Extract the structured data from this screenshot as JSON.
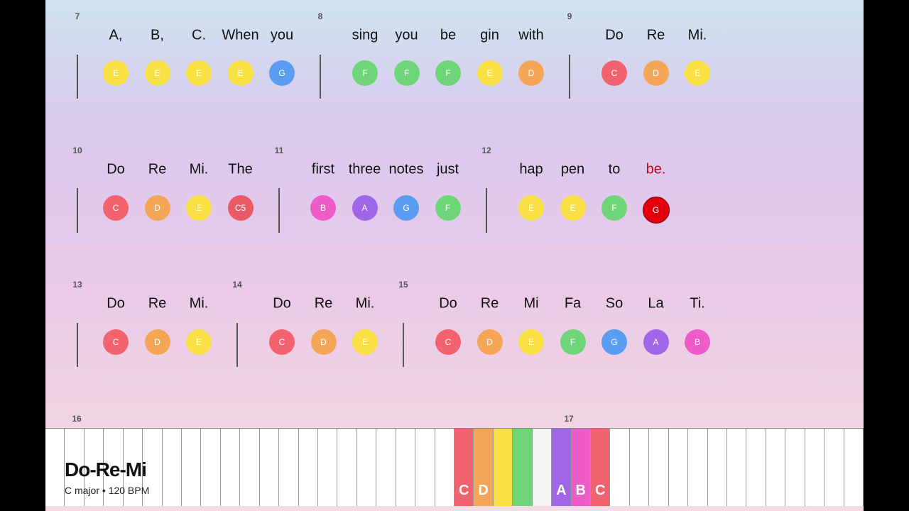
{
  "song": {
    "title": "Do-Re-Mi",
    "subtitle": "C major • 120 BPM"
  },
  "note_colors": {
    "C": "#f2626f",
    "D": "#f4a656",
    "E": "#f8e045",
    "F": "#6ed678",
    "G": "#5a9cf0",
    "A": "#a066e8",
    "B": "#ee5cc9",
    "C5": "#e85a66"
  },
  "highlight_color": "#e2000f",
  "lyric_highlight_color": "#c8001a",
  "measures": [
    {
      "number": 7,
      "notes": [
        {
          "lyric": "A,",
          "note": "E"
        },
        {
          "lyric": "B,",
          "note": "E"
        },
        {
          "lyric": "C.",
          "note": "E"
        },
        {
          "lyric": "When",
          "note": "E"
        },
        {
          "lyric": "you",
          "note": "G"
        }
      ]
    },
    {
      "number": 8,
      "notes": [
        {
          "lyric": "sing",
          "note": "F"
        },
        {
          "lyric": "you",
          "note": "F"
        },
        {
          "lyric": "be",
          "note": "F"
        },
        {
          "lyric": "gin",
          "note": "E"
        },
        {
          "lyric": "with",
          "note": "D"
        }
      ]
    },
    {
      "number": 9,
      "notes": [
        {
          "lyric": "Do",
          "note": "C"
        },
        {
          "lyric": "Re",
          "note": "D"
        },
        {
          "lyric": "Mi.",
          "note": "E"
        }
      ]
    },
    {
      "number": 10,
      "notes": [
        {
          "lyric": "Do",
          "note": "C"
        },
        {
          "lyric": "Re",
          "note": "D"
        },
        {
          "lyric": "Mi.",
          "note": "E"
        },
        {
          "lyric": "The",
          "note": "C5"
        }
      ]
    },
    {
      "number": 11,
      "notes": [
        {
          "lyric": "first",
          "note": "B"
        },
        {
          "lyric": "three",
          "note": "A"
        },
        {
          "lyric": "notes",
          "note": "G"
        },
        {
          "lyric": "just",
          "note": "F"
        }
      ]
    },
    {
      "number": 12,
      "notes": [
        {
          "lyric": "hap",
          "note": "E"
        },
        {
          "lyric": "pen",
          "note": "E"
        },
        {
          "lyric": "to",
          "note": "F"
        },
        {
          "lyric": "be.",
          "note": "G",
          "highlighted": true
        }
      ]
    },
    {
      "number": 13,
      "notes": [
        {
          "lyric": "Do",
          "note": "C"
        },
        {
          "lyric": "Re",
          "note": "D"
        },
        {
          "lyric": "Mi.",
          "note": "E"
        }
      ]
    },
    {
      "number": 14,
      "notes": [
        {
          "lyric": "Do",
          "note": "C"
        },
        {
          "lyric": "Re",
          "note": "D"
        },
        {
          "lyric": "Mi.",
          "note": "E"
        }
      ]
    },
    {
      "number": 15,
      "notes": [
        {
          "lyric": "Do",
          "note": "C"
        },
        {
          "lyric": "Re",
          "note": "D"
        },
        {
          "lyric": "Mi",
          "note": "E"
        },
        {
          "lyric": "Fa",
          "note": "F"
        },
        {
          "lyric": "So",
          "note": "G"
        },
        {
          "lyric": "La",
          "note": "A"
        },
        {
          "lyric": "Ti.",
          "note": "B"
        }
      ]
    },
    {
      "number": 16,
      "notes": []
    },
    {
      "number": 17,
      "notes": []
    }
  ],
  "keyboard": {
    "keys": [
      {
        "label": "C",
        "color": "#f2626f"
      },
      {
        "label": "D",
        "color": "#f4a656"
      },
      {
        "label": null,
        "color": "#f8e045"
      },
      {
        "label": null,
        "color": "#6ed678"
      },
      {
        "label": null,
        "color": "#f4f4f4"
      },
      {
        "label": "A",
        "color": "#a066e8"
      },
      {
        "label": "B",
        "color": "#ee5cc9"
      },
      {
        "label": "C",
        "color": "#f2626f"
      }
    ]
  }
}
